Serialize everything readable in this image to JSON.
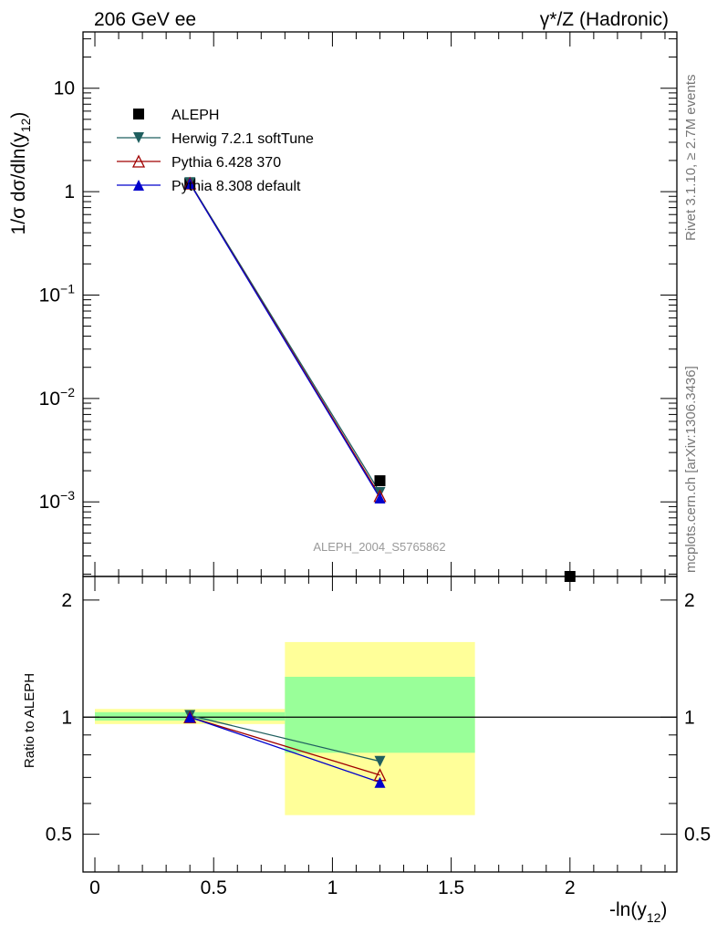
{
  "header": {
    "left": "206 GeV ee",
    "right": "γ*/Z (Hadronic)"
  },
  "side": {
    "rivet": "Rivet 3.1.10, ≥ 2.7M events",
    "mcplots": "mcplots.cern.ch [arXiv:1306.3436]"
  },
  "watermark": "ALEPH_2004_S5765862",
  "axes": {
    "ylabel_main": "1/σ  dσ/dln(y",
    "ylabel_main_sub": "12",
    "ylabel_main_close": ")",
    "ylabel_ratio": "Ratio to ALEPH",
    "xlabel": "-ln(y",
    "xlabel_sub": "12",
    "xlabel_close": ")",
    "x_ticks": [
      "0",
      "0.5",
      "1",
      "1.5",
      "2"
    ],
    "main_ticks": [
      {
        "value": 10,
        "base": "10",
        "exp": ""
      },
      {
        "value": 1,
        "base": "1",
        "exp": ""
      },
      {
        "value": 0.1,
        "base": "10",
        "exp": "−1"
      },
      {
        "value": 0.01,
        "base": "10",
        "exp": "−2"
      },
      {
        "value": 0.001,
        "base": "10",
        "exp": "−3"
      }
    ],
    "ratio_ticks": [
      "2",
      "1",
      "0.5"
    ]
  },
  "chart_data": [
    {
      "type": "line",
      "panel": "main",
      "x_scale": "linear",
      "y_scale": "log",
      "xlim": [
        -0.05,
        2.45
      ],
      "ylim": [
        0.00019,
        35
      ],
      "series": [
        {
          "name": "ALEPH",
          "marker": "square",
          "color": "#000000",
          "x": [
            0.4,
            1.2,
            2.0
          ],
          "y": [
            1.2,
            0.0016,
            0.00019
          ]
        },
        {
          "name": "Herwig 7.2.1 softTune",
          "marker": "triangle-down",
          "color": "#1f5f5f",
          "x": [
            0.4,
            1.2
          ],
          "y": [
            1.22,
            0.00123
          ]
        },
        {
          "name": "Pythia 6.428 370",
          "marker": "triangle-up-open",
          "color": "#a00000",
          "x": [
            0.4,
            1.2
          ],
          "y": [
            1.2,
            0.00114
          ]
        },
        {
          "name": "Pythia 8.308 default",
          "marker": "triangle-up",
          "color": "#0000cc",
          "x": [
            0.4,
            1.2
          ],
          "y": [
            1.2,
            0.00109
          ]
        }
      ]
    },
    {
      "type": "line",
      "panel": "ratio",
      "x_scale": "linear",
      "y_scale": "log",
      "xlim": [
        -0.05,
        2.45
      ],
      "ylim": [
        0.4,
        2.3
      ],
      "reference": 1,
      "bands": [
        {
          "x0": 0.0,
          "x1": 0.8,
          "yellow": [
            0.96,
            1.05
          ],
          "green": [
            0.98,
            1.03
          ]
        },
        {
          "x0": 0.8,
          "x1": 1.6,
          "yellow": [
            0.56,
            1.56
          ],
          "green": [
            0.81,
            1.27
          ]
        }
      ],
      "series": [
        {
          "name": "Herwig 7.2.1 softTune",
          "marker": "triangle-down",
          "color": "#1f5f5f",
          "x": [
            0.4,
            1.2
          ],
          "y": [
            1.01,
            0.77
          ]
        },
        {
          "name": "Pythia 6.428 370",
          "marker": "triangle-up-open",
          "color": "#a00000",
          "x": [
            0.4,
            1.2
          ],
          "y": [
            1.0,
            0.71
          ]
        },
        {
          "name": "Pythia 8.308 default",
          "marker": "triangle-up",
          "color": "#0000cc",
          "x": [
            0.4,
            1.2
          ],
          "y": [
            1.0,
            0.68
          ]
        }
      ]
    }
  ],
  "colors": {
    "band_yellow": "#ffff99",
    "band_green": "#99ff99"
  }
}
